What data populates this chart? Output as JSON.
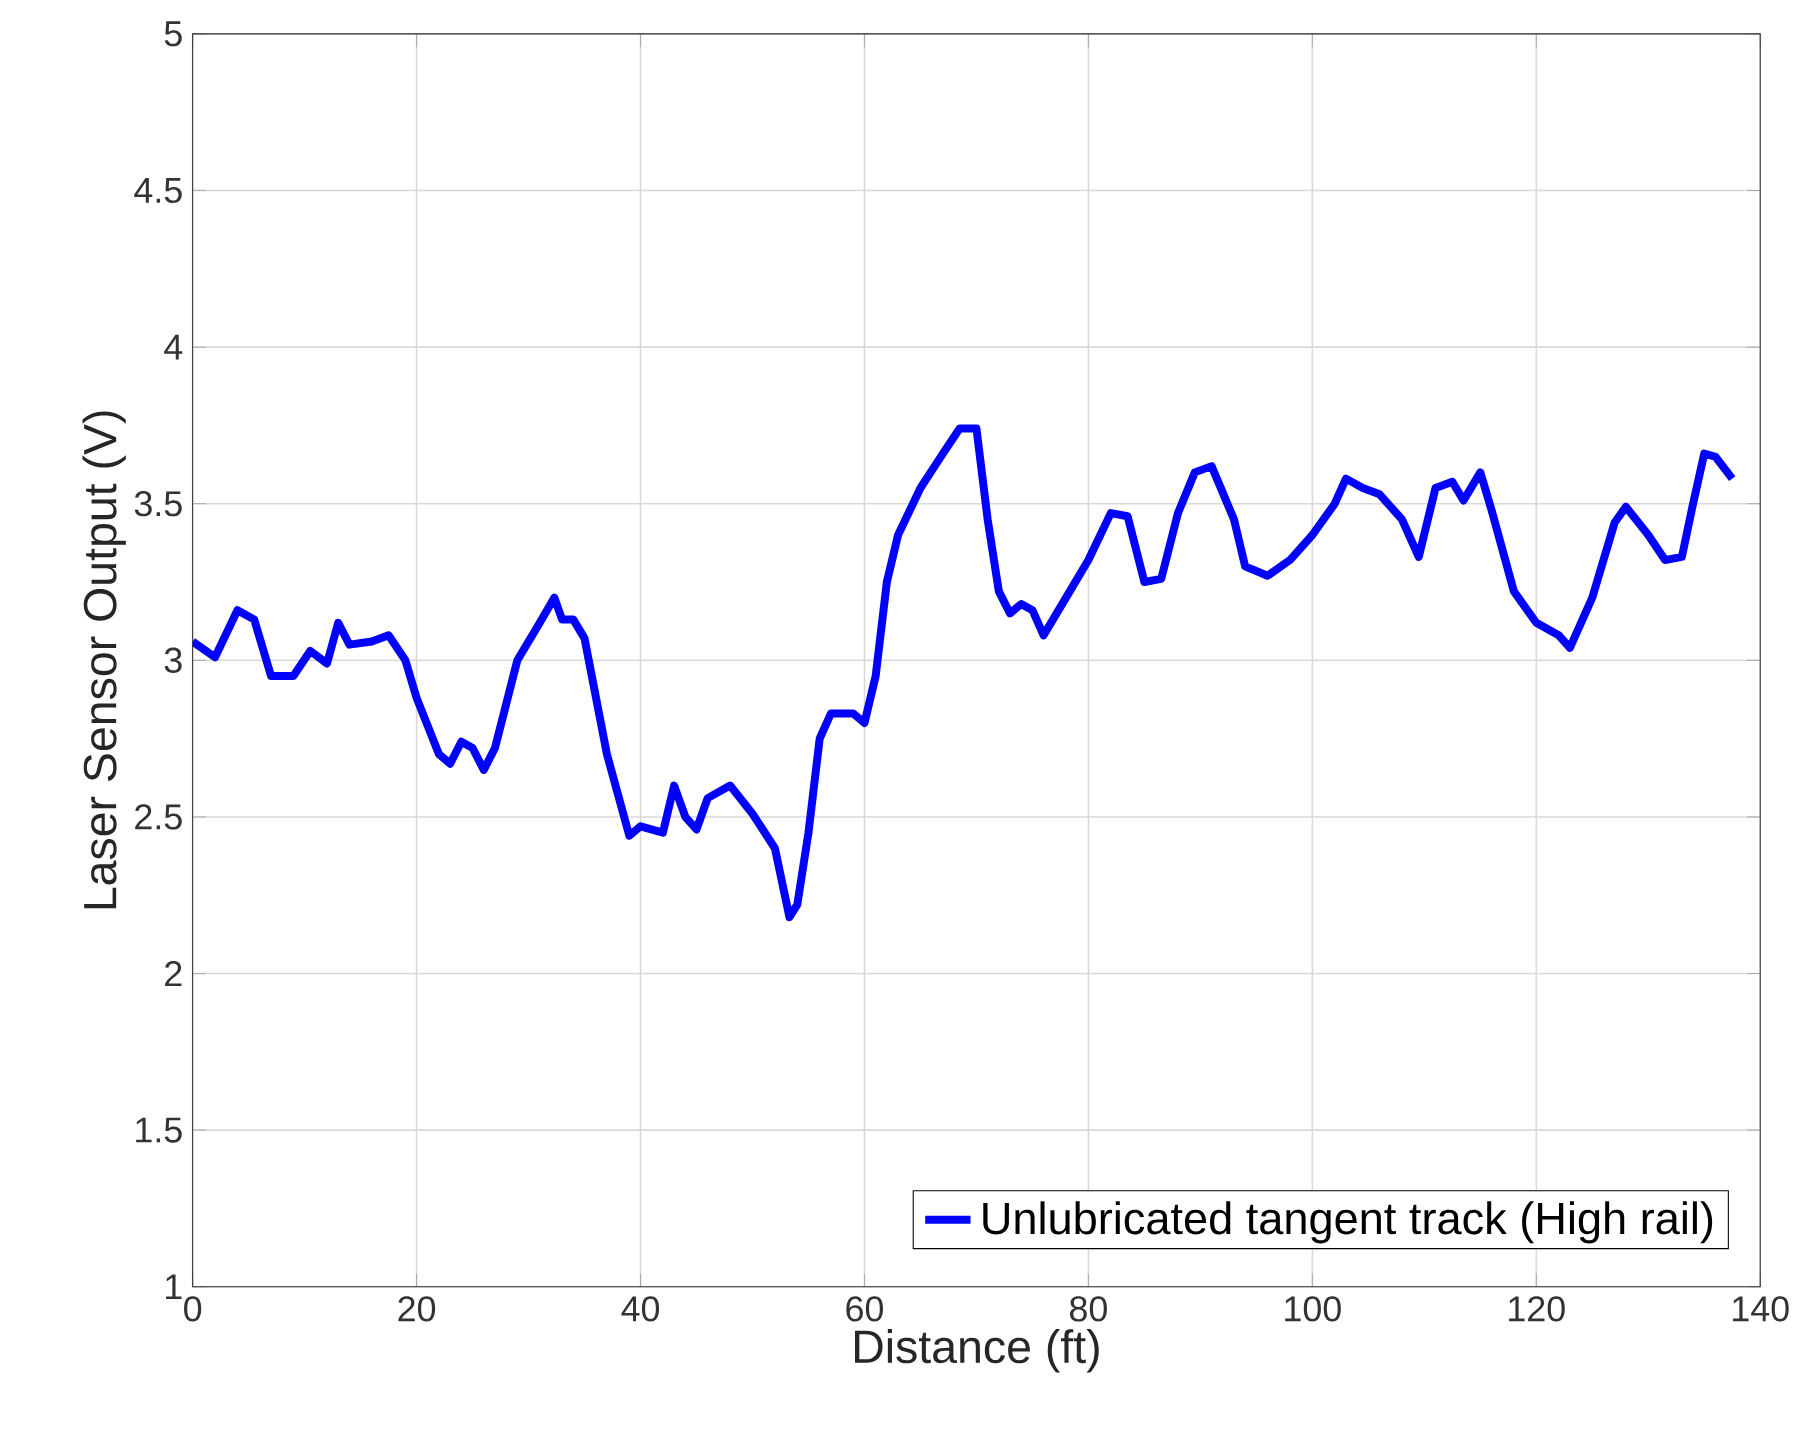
{
  "chart_data": {
    "type": "line",
    "xlabel": "Distance (ft)",
    "ylabel": "Laser Sensor Output (V)",
    "xlim": [
      0,
      140
    ],
    "ylim": [
      1,
      5
    ],
    "xticks": [
      0,
      20,
      40,
      60,
      80,
      100,
      120,
      140
    ],
    "yticks": [
      1,
      1.5,
      2,
      2.5,
      3,
      3.5,
      4,
      4.5,
      5
    ],
    "grid": true,
    "legend": "bottom right",
    "line_style": "solid",
    "marker": "none",
    "series": [
      {
        "name": "Unlubricated tangent track (High rail)",
        "color": "#0000ff",
        "x": [
          0,
          2,
          4,
          5.5,
          7,
          9,
          10.5,
          12,
          13,
          14,
          16,
          17.5,
          19,
          20,
          22,
          23,
          24,
          25,
          26,
          27,
          29,
          31,
          32.3,
          33,
          34,
          35,
          37,
          39,
          40,
          42,
          43,
          44,
          45,
          46,
          48,
          50,
          52,
          53.3,
          54,
          55,
          56,
          57,
          59,
          60,
          61,
          62,
          63,
          65,
          67,
          68.5,
          70,
          71,
          72,
          73,
          74,
          75,
          76,
          78,
          80,
          82,
          83.5,
          85,
          86.5,
          88,
          89.5,
          91,
          93,
          94,
          96,
          98,
          100,
          102,
          103,
          104.5,
          106,
          108,
          109.5,
          111,
          112.5,
          113.5,
          115,
          116,
          118,
          120,
          122,
          123,
          125,
          127,
          128,
          130,
          131.5,
          133,
          134,
          135,
          136,
          137.5
        ],
        "values": [
          3.06,
          3.01,
          3.16,
          3.13,
          2.95,
          2.95,
          3.03,
          2.99,
          3.12,
          3.05,
          3.06,
          3.08,
          3.0,
          2.88,
          2.7,
          2.67,
          2.74,
          2.72,
          2.65,
          2.72,
          3.0,
          3.12,
          3.2,
          3.13,
          3.13,
          3.07,
          2.7,
          2.44,
          2.47,
          2.45,
          2.6,
          2.5,
          2.46,
          2.56,
          2.6,
          2.51,
          2.4,
          2.18,
          2.22,
          2.45,
          2.75,
          2.83,
          2.83,
          2.8,
          2.95,
          3.25,
          3.4,
          3.55,
          3.66,
          3.74,
          3.74,
          3.45,
          3.22,
          3.15,
          3.18,
          3.16,
          3.08,
          3.2,
          3.32,
          3.47,
          3.46,
          3.25,
          3.26,
          3.47,
          3.6,
          3.62,
          3.45,
          3.3,
          3.27,
          3.32,
          3.4,
          3.5,
          3.58,
          3.55,
          3.53,
          3.45,
          3.33,
          3.55,
          3.57,
          3.51,
          3.6,
          3.48,
          3.22,
          3.12,
          3.08,
          3.04,
          3.2,
          3.44,
          3.49,
          3.4,
          3.32,
          3.33,
          3.5,
          3.66,
          3.65,
          3.58
        ]
      }
    ]
  }
}
